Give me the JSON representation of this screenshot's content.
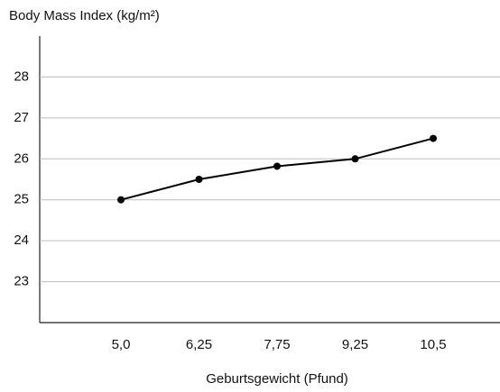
{
  "chart_data": {
    "type": "line",
    "title": "Body Mass Index (kg/m²)",
    "x_label": "Geburtsgewicht (Pfund)",
    "categories": [
      "5,0",
      "6,25",
      "7,75",
      "9,25",
      "10,5"
    ],
    "series": [
      {
        "name": null,
        "color": "#000000",
        "values": [
          25.0,
          25.5,
          25.82,
          26.0,
          26.5
        ]
      }
    ],
    "ylim": [
      22,
      29
    ],
    "yticks": [
      23,
      24,
      25,
      26,
      27,
      28
    ],
    "grid": true
  }
}
